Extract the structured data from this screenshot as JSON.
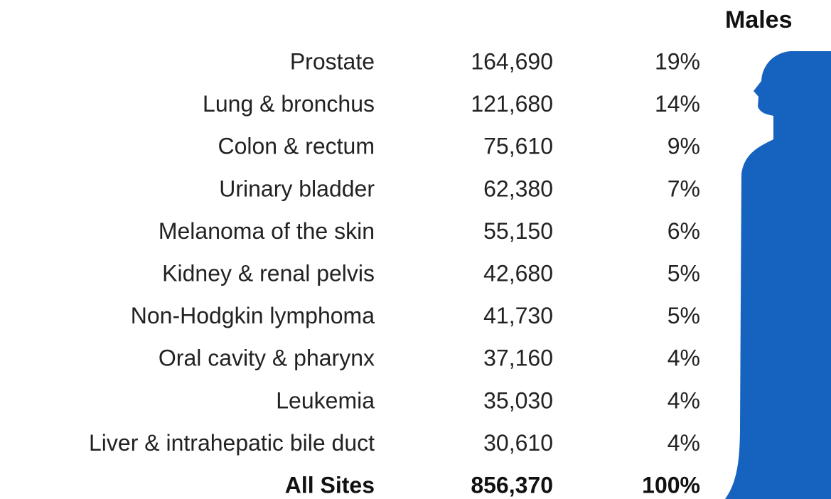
{
  "header": {
    "title": "Males"
  },
  "table": {
    "rows": [
      [
        "Prostate",
        "164,690",
        "19%"
      ],
      [
        "Lung & bronchus",
        "121,680",
        "14%"
      ],
      [
        "Colon & rectum",
        "75,610",
        "9%"
      ],
      [
        "Urinary bladder",
        "62,380",
        "7%"
      ],
      [
        "Melanoma of the skin",
        "55,150",
        "6%"
      ],
      [
        "Kidney & renal pelvis",
        "42,680",
        "5%"
      ],
      [
        "Non-Hodgkin lymphoma",
        "41,730",
        "5%"
      ],
      [
        "Oral cavity & pharynx",
        "37,160",
        "4%"
      ],
      [
        "Leukemia",
        "35,030",
        "4%"
      ],
      [
        "Liver & intrahepatic bile duct",
        "30,610",
        "4%"
      ]
    ],
    "total": [
      "All Sites",
      "856,370",
      "100%"
    ]
  }
}
